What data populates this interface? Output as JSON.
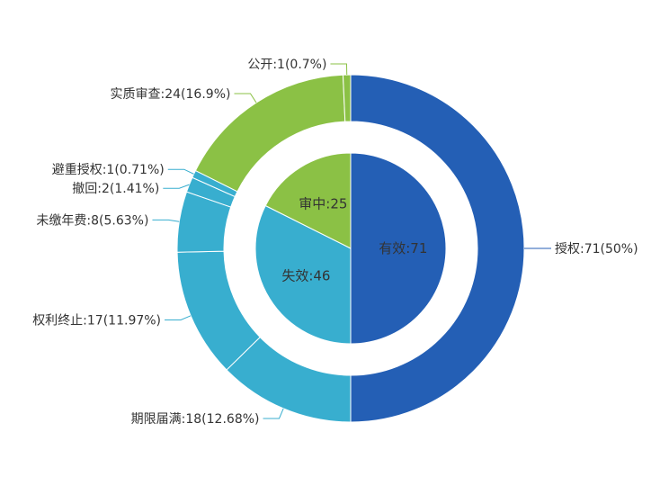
{
  "chart_data": {
    "type": "pie",
    "inner": {
      "colors": {
        "有效": "#245fb5",
        "失效": "#38aecf",
        "审中": "#8bc145"
      },
      "slices": [
        {
          "label": "有效:71",
          "name": "有效",
          "value": 71
        },
        {
          "label": "失效:46",
          "name": "失效",
          "value": 46
        },
        {
          "label": "审中:25",
          "name": "审中",
          "value": 25
        }
      ]
    },
    "outer": {
      "slices": [
        {
          "label": "授权:71(50%)",
          "name": "授权",
          "value": 71,
          "color": "#245fb5"
        },
        {
          "label": "期限届满:18(12.68%)",
          "name": "期限届满",
          "value": 18,
          "color": "#38aecf"
        },
        {
          "label": "权利终止:17(11.97%)",
          "name": "权利终止",
          "value": 17,
          "color": "#38aecf"
        },
        {
          "label": "未缴年费:8(5.63%)",
          "name": "未缴年费",
          "value": 8,
          "color": "#38aecf"
        },
        {
          "label": "撤回:2(1.41%)",
          "name": "撤回",
          "value": 2,
          "color": "#38aecf"
        },
        {
          "label": "避重授权:1(0.71%)",
          "name": "避重授权",
          "value": 1,
          "color": "#38aecf"
        },
        {
          "label": "实质审查:24(16.9%)",
          "name": "实质审查",
          "value": 24,
          "color": "#8bc145"
        },
        {
          "label": "公开:1(0.7%)",
          "name": "公开",
          "value": 1,
          "color": "#8bc145"
        }
      ]
    }
  }
}
